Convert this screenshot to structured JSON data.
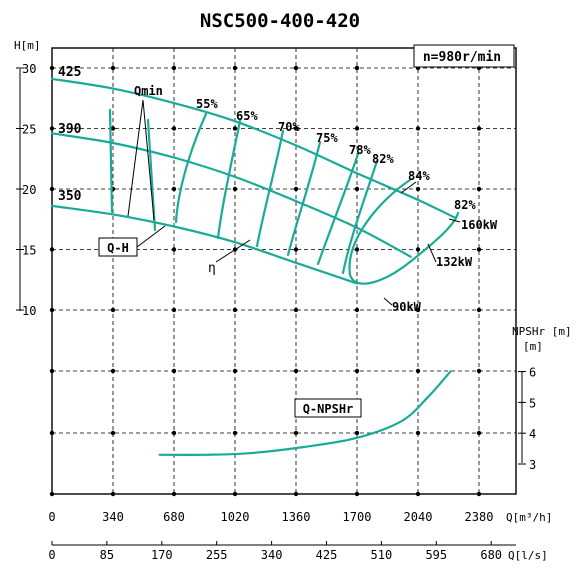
{
  "chart_data": {
    "type": "line",
    "title": "NSC500-400-420",
    "speed_label": "n=980r/min",
    "x_axis_primary": {
      "label": "Q[m³/h]",
      "ticks": [
        "0",
        "340",
        "680",
        "1020",
        "1360",
        "1700",
        "2040",
        "2380"
      ]
    },
    "x_axis_secondary": {
      "label": "Q[l/s]",
      "ticks": [
        "0",
        "85",
        "170",
        "255",
        "340",
        "425",
        "510",
        "595",
        "680"
      ]
    },
    "y_axis_head": {
      "label": "H[m]",
      "ticks": [
        "30",
        "25",
        "20",
        "15",
        "10"
      ],
      "range": [
        10,
        30
      ]
    },
    "y_axis_npsh": {
      "label": "NPSHr [m]",
      "ticks": [
        "6",
        "5",
        "4",
        "3"
      ],
      "range": [
        3,
        6
      ]
    },
    "curve_labels": {
      "qh": "Q-H",
      "eff": "η",
      "qmin": "Qmin",
      "npsh": "Q-NPSHr"
    },
    "impeller_labels": [
      "425",
      "390",
      "350"
    ],
    "efficiency_labels": [
      "55%",
      "65%",
      "70%",
      "75%",
      "78%",
      "82%",
      "84%",
      "82%"
    ],
    "power_labels": [
      "160kW",
      "132kW",
      "90kW"
    ],
    "series": [
      {
        "name": "425",
        "x": [
          0,
          340,
          680,
          1020,
          1360,
          1700,
          2040,
          2250
        ],
        "y": [
          29.1,
          28.3,
          27.1,
          25.6,
          23.6,
          21.3,
          19.1,
          17.6
        ]
      },
      {
        "name": "390",
        "x": [
          0,
          340,
          680,
          1020,
          1360,
          1700,
          2000
        ],
        "y": [
          24.6,
          23.8,
          22.6,
          21.0,
          19.0,
          16.8,
          14.4
        ]
      },
      {
        "name": "350",
        "x": [
          0,
          340,
          680,
          1020,
          1360,
          1700
        ],
        "y": [
          18.6,
          17.9,
          16.9,
          15.6,
          13.9,
          12.2
        ]
      },
      {
        "name": "Q-NPSHr",
        "x": [
          600,
          850,
          1100,
          1400,
          1700,
          1950,
          2100,
          2220
        ],
        "y": [
          3.3,
          3.3,
          3.35,
          3.55,
          3.85,
          4.4,
          5.2,
          6.0
        ]
      }
    ]
  }
}
